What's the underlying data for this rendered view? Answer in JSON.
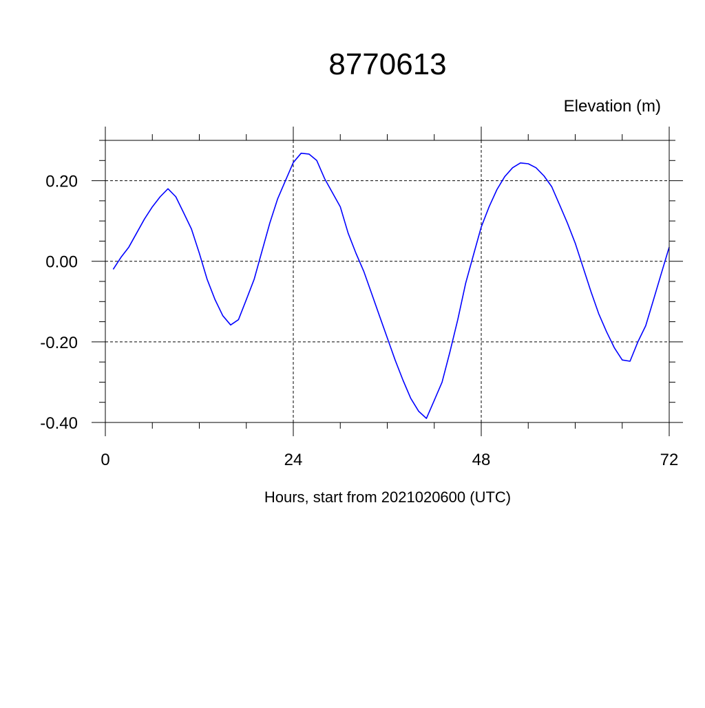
{
  "chart_data": {
    "type": "line",
    "title": "8770613",
    "subtitle": "Elevation (m)",
    "xlabel": "Hours, start from 2021020600 (UTC)",
    "ylabel": "",
    "xlim": [
      0,
      72
    ],
    "ylim": [
      -0.4,
      0.3
    ],
    "x_ticks": [
      0,
      24,
      48,
      72
    ],
    "x_tick_labels": [
      "0",
      "24",
      "48",
      "72"
    ],
    "y_ticks": [
      -0.4,
      -0.2,
      0.0,
      0.2
    ],
    "y_tick_labels": [
      "-0.40",
      "-0.20",
      "0.00",
      "0.20"
    ],
    "grid": true,
    "line_color": "#0000ff",
    "series": [
      {
        "x": [
          1,
          2,
          3,
          4,
          5,
          6,
          7,
          8,
          9,
          10,
          11,
          12,
          13,
          14,
          15,
          16,
          17,
          18,
          19,
          20,
          21,
          22,
          23,
          24,
          25,
          26,
          27,
          28,
          29,
          30,
          31,
          32,
          33,
          34,
          35,
          36,
          37,
          38,
          39,
          40,
          41,
          42,
          43,
          44,
          45,
          46,
          47,
          48,
          49,
          50,
          51,
          52,
          53,
          54,
          55,
          56,
          57,
          58,
          59,
          60,
          61,
          62,
          63,
          64,
          65,
          66,
          67,
          68,
          69,
          70,
          71,
          72
        ],
        "values": [
          -0.02,
          0.01,
          0.035,
          0.07,
          0.105,
          0.135,
          0.16,
          0.18,
          0.16,
          0.12,
          0.08,
          0.02,
          -0.045,
          -0.095,
          -0.135,
          -0.158,
          -0.145,
          -0.095,
          -0.045,
          0.025,
          0.095,
          0.155,
          0.2,
          0.245,
          0.268,
          0.266,
          0.25,
          0.205,
          0.17,
          0.135,
          0.07,
          0.02,
          -0.025,
          -0.08,
          -0.135,
          -0.19,
          -0.245,
          -0.295,
          -0.34,
          -0.372,
          -0.39,
          -0.345,
          -0.3,
          -0.225,
          -0.145,
          -0.055,
          0.015,
          0.085,
          0.135,
          0.178,
          0.21,
          0.232,
          0.244,
          0.242,
          0.232,
          0.212,
          0.185,
          0.14,
          0.095,
          0.045,
          -0.015,
          -0.075,
          -0.13,
          -0.175,
          -0.215,
          -0.245,
          -0.248,
          -0.2,
          -0.16,
          -0.095,
          -0.03,
          0.035
        ]
      }
    ]
  }
}
